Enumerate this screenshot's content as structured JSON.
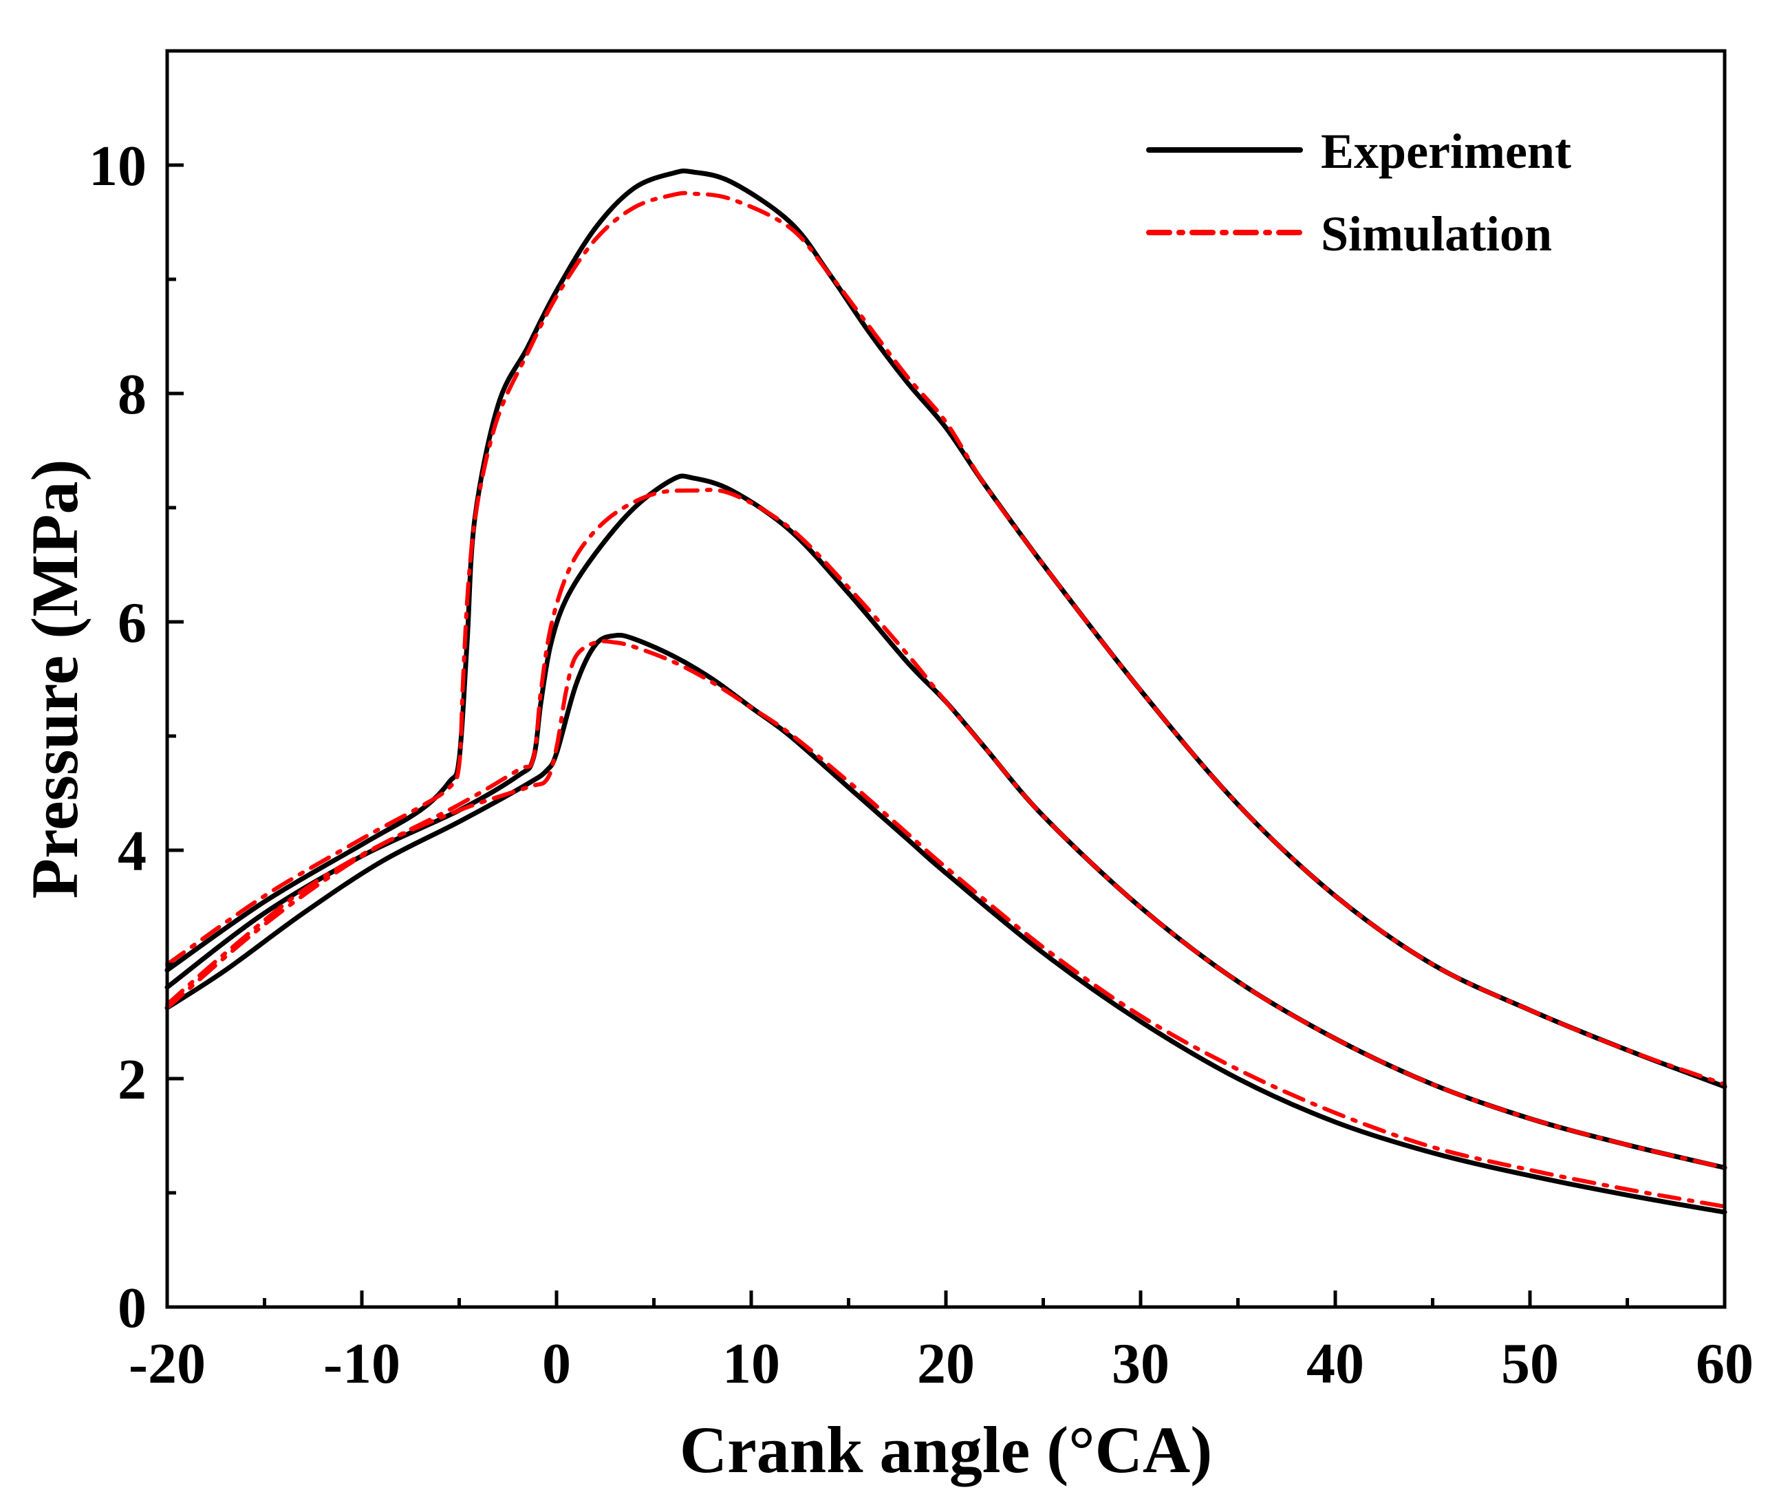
{
  "chart_data": {
    "type": "line",
    "title": "",
    "xlabel": "Crank angle (°CA)",
    "ylabel": "Pressure (MPa)",
    "xlim": [
      -20,
      60
    ],
    "ylim": [
      0,
      11
    ],
    "x_ticks": [
      -20,
      -10,
      0,
      10,
      20,
      30,
      40,
      50,
      60
    ],
    "x_tick_labels": [
      "-20",
      "-10",
      "0",
      "10",
      "20",
      "30",
      "40",
      "50",
      "60"
    ],
    "y_ticks": [
      0,
      2,
      4,
      6,
      8,
      10
    ],
    "y_tick_labels": [
      "0",
      "2",
      "4",
      "6",
      "8",
      "10"
    ],
    "grid": false,
    "legend_position": "top-right",
    "legend": [
      {
        "label": "Experiment",
        "color": "#000000",
        "style": "solid"
      },
      {
        "label": "Simulation",
        "color": "#ff0000",
        "style": "dash-dot"
      }
    ],
    "series": [
      {
        "name": "Experiment",
        "case": "high",
        "color": "#000000",
        "style": "solid",
        "x": [
          -20,
          -15,
          -10,
          -7,
          -5.5,
          -5,
          -4.6,
          -4.2,
          -3,
          -1.5,
          0,
          2,
          4,
          6,
          7,
          9,
          12,
          14,
          16,
          18,
          20,
          22,
          25,
          30,
          35,
          40,
          45,
          50,
          55,
          60
        ],
        "y": [
          2.95,
          3.55,
          4.05,
          4.35,
          4.6,
          4.8,
          5.8,
          6.9,
          7.9,
          8.4,
          8.9,
          9.45,
          9.8,
          9.93,
          9.94,
          9.85,
          9.5,
          9.05,
          8.55,
          8.1,
          7.7,
          7.2,
          6.5,
          5.4,
          4.4,
          3.6,
          3.0,
          2.6,
          2.25,
          1.93
        ]
      },
      {
        "name": "Simulation",
        "case": "high",
        "color": "#ff0000",
        "style": "dash-dot",
        "x": [
          -20,
          -15,
          -10,
          -7,
          -5.5,
          -5,
          -4.8,
          -4.5,
          -4,
          -3,
          -1.5,
          0,
          2,
          4,
          6,
          7,
          9,
          12,
          14,
          16,
          18,
          20,
          22,
          25,
          30,
          35,
          40,
          45,
          50,
          55,
          60
        ],
        "y": [
          3.0,
          3.6,
          4.1,
          4.38,
          4.55,
          4.75,
          5.5,
          6.4,
          7.1,
          7.8,
          8.35,
          8.85,
          9.35,
          9.63,
          9.74,
          9.75,
          9.7,
          9.45,
          9.05,
          8.6,
          8.15,
          7.75,
          7.2,
          6.5,
          5.4,
          4.4,
          3.6,
          3.0,
          2.6,
          2.25,
          1.95
        ]
      },
      {
        "name": "Experiment",
        "case": "medium",
        "color": "#000000",
        "style": "solid",
        "x": [
          -20,
          -15,
          -10,
          -5,
          -2,
          -1.2,
          -0.8,
          -0.3,
          0.5,
          2,
          4,
          6,
          7,
          9,
          12,
          15,
          18,
          20,
          22,
          25,
          30,
          35,
          40,
          45,
          50,
          55,
          60
        ],
        "y": [
          2.8,
          3.45,
          3.95,
          4.35,
          4.65,
          4.8,
          5.3,
          5.8,
          6.2,
          6.6,
          7.0,
          7.25,
          7.26,
          7.15,
          6.8,
          6.25,
          5.65,
          5.3,
          4.9,
          4.3,
          3.5,
          2.85,
          2.35,
          1.95,
          1.65,
          1.42,
          1.22
        ]
      },
      {
        "name": "Simulation",
        "case": "medium",
        "color": "#ff0000",
        "style": "dash-dot",
        "x": [
          -20,
          -15,
          -10,
          -5,
          -2,
          -1.2,
          -0.8,
          -0.3,
          0.5,
          1.5,
          3,
          5,
          7,
          9,
          12,
          15,
          18,
          20,
          22,
          25,
          30,
          35,
          40,
          45,
          50,
          55,
          60
        ],
        "y": [
          2.62,
          3.35,
          3.95,
          4.4,
          4.7,
          4.8,
          5.4,
          5.95,
          6.4,
          6.7,
          6.95,
          7.12,
          7.15,
          7.12,
          6.82,
          6.3,
          5.72,
          5.3,
          4.9,
          4.3,
          3.5,
          2.85,
          2.35,
          1.95,
          1.65,
          1.42,
          1.22
        ]
      },
      {
        "name": "Experiment",
        "case": "low",
        "color": "#000000",
        "style": "solid",
        "x": [
          -20,
          -17,
          -13,
          -9,
          -5,
          -1.5,
          -0.5,
          0,
          1,
          2,
          3,
          4,
          6,
          8,
          10,
          12,
          15,
          18,
          20,
          25,
          30,
          35,
          40,
          45,
          50,
          55,
          60
        ],
        "y": [
          2.62,
          2.95,
          3.45,
          3.9,
          4.25,
          4.58,
          4.7,
          4.85,
          5.45,
          5.8,
          5.88,
          5.85,
          5.7,
          5.5,
          5.25,
          5.0,
          4.55,
          4.1,
          3.8,
          3.1,
          2.5,
          2.0,
          1.62,
          1.35,
          1.15,
          0.98,
          0.83
        ]
      },
      {
        "name": "Simulation",
        "case": "low",
        "color": "#ff0000",
        "style": "dash-dot",
        "x": [
          -20,
          -17,
          -13,
          -9,
          -5,
          -1.5,
          -0.5,
          0,
          0.5,
          1,
          2,
          3,
          4,
          6,
          8,
          10,
          12,
          15,
          18,
          20,
          25,
          30,
          35,
          40,
          45,
          50,
          55,
          60
        ],
        "y": [
          2.65,
          3.1,
          3.65,
          4.05,
          4.35,
          4.55,
          4.62,
          4.9,
          5.4,
          5.7,
          5.82,
          5.82,
          5.78,
          5.65,
          5.47,
          5.25,
          5.02,
          4.6,
          4.15,
          3.85,
          3.15,
          2.55,
          2.08,
          1.7,
          1.4,
          1.2,
          1.03,
          0.88
        ]
      }
    ]
  }
}
